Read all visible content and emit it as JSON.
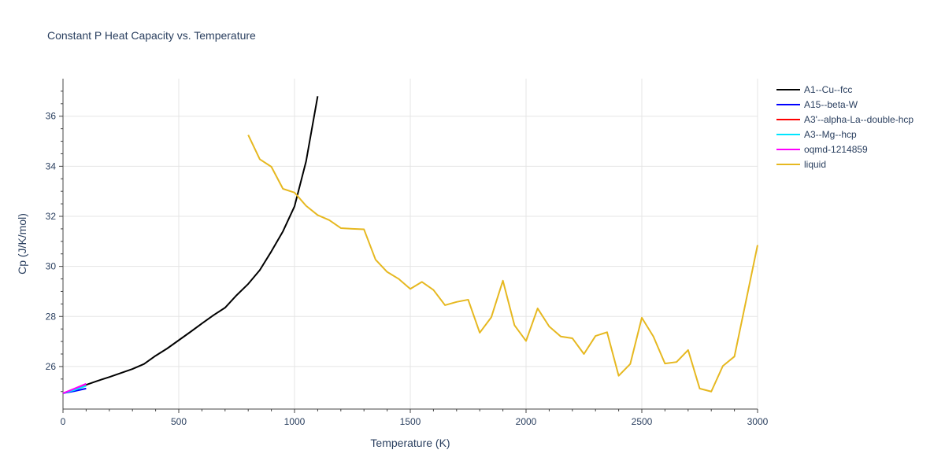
{
  "chart_data": {
    "type": "line",
    "title": "Constant P Heat Capacity vs. Temperature",
    "xlabel": "Temperature (K)",
    "ylabel": "Cp (J/K/mol)",
    "xlim": [
      0,
      3000
    ],
    "ylim": [
      24.3,
      37.5
    ],
    "xticks": [
      0,
      500,
      1000,
      1500,
      2000,
      2500,
      3000
    ],
    "yticks": [
      26,
      28,
      30,
      32,
      34,
      36
    ],
    "series": [
      {
        "name": "A1--Cu--fcc",
        "color": "#000000",
        "x": [
          0,
          50,
          100,
          150,
          200,
          250,
          300,
          350,
          400,
          450,
          500,
          550,
          600,
          650,
          700,
          750,
          800,
          850,
          900,
          950,
          1000,
          1050,
          1100
        ],
        "y": [
          24.93,
          25.1,
          25.27,
          25.43,
          25.58,
          25.74,
          25.9,
          26.1,
          26.43,
          26.72,
          27.05,
          27.38,
          27.72,
          28.05,
          28.35,
          28.85,
          29.3,
          29.85,
          30.6,
          31.4,
          32.4,
          34.2,
          36.8
        ]
      },
      {
        "name": "A15--beta-W",
        "color": "#0000ff",
        "x": [
          0,
          50,
          100
        ],
        "y": [
          24.93,
          25.02,
          25.12
        ]
      },
      {
        "name": "A3'--alpha-La--double-hcp",
        "color": "#ff0000",
        "x": [
          0,
          50,
          100
        ],
        "y": [
          24.93,
          25.08,
          25.27
        ]
      },
      {
        "name": "A3--Mg--hcp",
        "color": "#00e5ff",
        "x": [
          0,
          50,
          100
        ],
        "y": [
          24.93,
          25.06,
          25.23
        ]
      },
      {
        "name": "oqmd-1214859",
        "color": "#ff00ff",
        "x": [
          0,
          50,
          100
        ],
        "y": [
          24.93,
          25.12,
          25.31
        ]
      },
      {
        "name": "liquid",
        "color": "#e6b820",
        "x": [
          800,
          850,
          900,
          950,
          1000,
          1050,
          1100,
          1150,
          1200,
          1250,
          1300,
          1350,
          1400,
          1450,
          1500,
          1550,
          1600,
          1650,
          1700,
          1750,
          1800,
          1850,
          1900,
          1950,
          2000,
          2050,
          2100,
          2150,
          2200,
          2250,
          2300,
          2350,
          2400,
          2450,
          2500,
          2550,
          2600,
          2650,
          2700,
          2750,
          2800,
          2850,
          2900,
          2950,
          3000
        ],
        "y": [
          35.25,
          34.28,
          33.98,
          33.1,
          32.95,
          32.42,
          32.05,
          31.85,
          31.53,
          31.5,
          31.48,
          30.27,
          29.78,
          29.5,
          29.1,
          29.38,
          29.06,
          28.45,
          28.58,
          28.67,
          27.35,
          27.97,
          29.43,
          27.65,
          27.02,
          28.32,
          27.6,
          27.2,
          27.13,
          26.5,
          27.22,
          27.37,
          25.63,
          26.1,
          27.95,
          27.2,
          26.12,
          26.18,
          26.66,
          25.12,
          25.0,
          26.02,
          26.4,
          28.62,
          30.85
        ]
      }
    ]
  }
}
